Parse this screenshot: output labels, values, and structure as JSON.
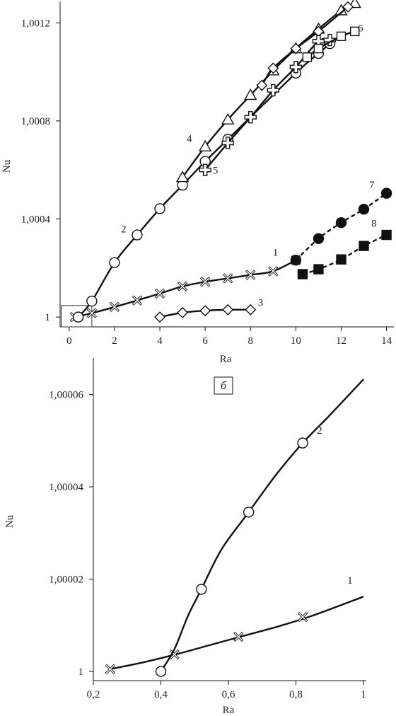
{
  "chart_data": [
    {
      "type": "line",
      "xlabel": "Ra",
      "ylabel": "Nu",
      "xlim": [
        -0.4,
        14.2
      ],
      "ylim": [
        0.99996,
        1.00127
      ],
      "x_ticks": [
        0,
        2,
        4,
        6,
        8,
        10,
        12,
        14
      ],
      "x_tick_labels": [
        "0",
        "2",
        "4",
        "6",
        "8",
        "10",
        "12",
        "14"
      ],
      "y_ticks": [
        1.0,
        1.0004,
        1.0008,
        1.0012
      ],
      "y_tick_labels": [
        "1",
        "1,0004",
        "1,0008",
        "1,0012"
      ],
      "grid": false,
      "inset_box": {
        "x": [
          -0.35,
          1.0
        ],
        "y": [
          0.99996,
          1.000047
        ]
      },
      "series": [
        {
          "name": "1",
          "marker": "x",
          "dashed": false,
          "x": [
            0.25,
            1,
            2,
            3,
            4,
            5,
            6,
            7,
            8,
            9,
            10
          ],
          "y": [
            1.0,
            1.000016,
            1.000041,
            1.000068,
            1.000096,
            1.000125,
            1.000144,
            1.000158,
            1.000172,
            1.000187,
            1.000232
          ]
        },
        {
          "name": "2",
          "marker": "circle-open",
          "dashed": false,
          "x": [
            0.4,
            1,
            2,
            3,
            4,
            5,
            6,
            7,
            10,
            11,
            11.5
          ],
          "y": [
            1.0,
            1.000065,
            1.000222,
            1.000335,
            1.000442,
            1.000538,
            1.000635,
            1.000725,
            1.000995,
            1.001075,
            1.001115
          ]
        },
        {
          "name": "3",
          "marker": "diamond-open",
          "dashed": false,
          "x": [
            4,
            5,
            6,
            7,
            8
          ],
          "y": [
            1.0,
            1.000018,
            1.000026,
            1.00003,
            1.00003
          ]
        },
        {
          "name": "4",
          "marker": "triangle-open",
          "dashed": false,
          "x": [
            5,
            6,
            7,
            8,
            9,
            10,
            11,
            12,
            12.6
          ],
          "y": [
            1.00057,
            1.000695,
            1.000805,
            1.000905,
            1.001005,
            1.001095,
            1.001175,
            1.00125,
            1.00128
          ]
        },
        {
          "name": "",
          "marker": "diamond-open",
          "dashed": false,
          "x": [
            8.5,
            9,
            10,
            11,
            12.3
          ],
          "y": [
            1.000945,
            1.001015,
            1.001095,
            1.001165,
            1.001265
          ]
        },
        {
          "name": "5",
          "marker": "plus-bold",
          "dashed": false,
          "x": [
            6,
            7,
            8,
            9,
            10,
            11,
            11.5
          ],
          "y": [
            1.0006,
            1.00071,
            1.000815,
            1.000925,
            1.00102,
            1.001125,
            1.00113
          ]
        },
        {
          "name": "6",
          "marker": "square-open",
          "dashed": false,
          "x": [
            10.5,
            11,
            12,
            12.6
          ],
          "y": [
            1.00106,
            1.001095,
            1.001145,
            1.001165
          ]
        },
        {
          "name": "7",
          "marker": "circle-filled",
          "dashed": true,
          "x": [
            10,
            11,
            12,
            13,
            14
          ],
          "y": [
            1.000232,
            1.00032,
            1.000385,
            1.00044,
            1.000505
          ]
        },
        {
          "name": "8",
          "marker": "square-filled",
          "dashed": true,
          "x": [
            10.3,
            11,
            12,
            13,
            14
          ],
          "y": [
            1.000175,
            1.000195,
            1.000235,
            1.00029,
            1.000335
          ]
        }
      ],
      "curve_labels": [
        {
          "text": "1",
          "x": 9.1,
          "y": 1.00025
        },
        {
          "text": "2",
          "x": 2.4,
          "y": 1.000345
        },
        {
          "text": "3",
          "x": 8.45,
          "y": 1.000045
        },
        {
          "text": "4",
          "x": 5.3,
          "y": 1.000715
        },
        {
          "text": "5",
          "x": 6.45,
          "y": 1.000585
        },
        {
          "text": "6",
          "x": 12.85,
          "y": 1.001165
        },
        {
          "text": "7",
          "x": 13.35,
          "y": 1.000525
        },
        {
          "text": "8",
          "x": 13.45,
          "y": 1.000368
        }
      ]
    },
    {
      "type": "line",
      "panel_label": "б",
      "xlabel": "Ra",
      "ylabel": "Nu",
      "xlim": [
        0.2,
        1.0
      ],
      "ylim": [
        0.999998,
        1.000067
      ],
      "x_ticks": [
        0.2,
        0.4,
        0.6,
        0.8,
        1.0
      ],
      "x_tick_labels": [
        "0,2",
        "0,4",
        "0,6",
        "0,8",
        "1"
      ],
      "y_ticks": [
        1.0,
        1.00002,
        1.00004,
        1.00006
      ],
      "y_tick_labels": [
        "1",
        "1,00002",
        "1,00004",
        "1,00006"
      ],
      "grid": false,
      "series": [
        {
          "name": "1",
          "marker": "x",
          "curve_x": [
            0.25,
            0.35,
            0.45,
            0.55,
            0.65,
            0.75,
            0.85,
            1.0
          ],
          "curve_y": [
            1.0000005,
            1.000002,
            1.0000038,
            1.0000058,
            1.0000078,
            1.0000098,
            1.0000121,
            1.0000162
          ],
          "marker_x": [
            0.25,
            0.44,
            0.63,
            0.82
          ],
          "marker_y": [
            1.0000005,
            1.0000037,
            1.0000075,
            1.0000118
          ]
        },
        {
          "name": "2",
          "marker": "circle-open",
          "curve_x": [
            0.4,
            0.44,
            0.48,
            0.52,
            0.58,
            0.66,
            0.74,
            0.82,
            0.9,
            1.0
          ],
          "curve_y": [
            1.0,
            1.0000048,
            1.000012,
            1.0000178,
            1.0000265,
            1.0000345,
            1.0000425,
            1.0000495,
            1.0000555,
            1.0000633
          ],
          "marker_x": [
            0.4,
            0.52,
            0.66,
            0.82
          ],
          "marker_y": [
            1.0,
            1.0000178,
            1.0000345,
            1.0000495
          ]
        }
      ],
      "curve_labels": [
        {
          "text": "1",
          "x": 0.96,
          "y": 1.000019
        },
        {
          "text": "2",
          "x": 0.87,
          "y": 1.0000515
        }
      ]
    }
  ]
}
